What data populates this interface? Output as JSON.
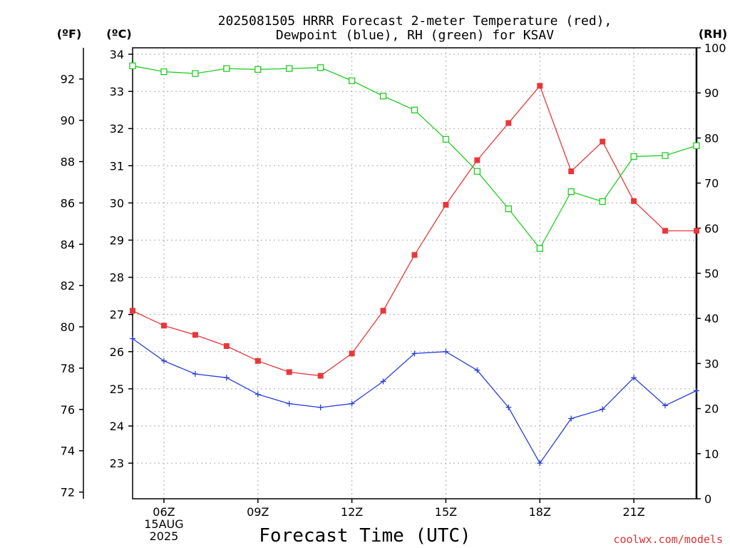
{
  "chart_data": {
    "type": "line",
    "title_lines": [
      "2025081505 HRRR Forecast 2-meter Temperature (red),",
      "Dewpoint (blue), RH (green) for KSAV"
    ],
    "xlabel": "Forecast Time (UTC)",
    "credit": "coolwx.com/models",
    "units": {
      "fahrenheit": "(ºF)",
      "celsius": "(ºC)",
      "rh": "(RH)"
    },
    "x_hours": [
      5,
      6,
      7,
      8,
      9,
      10,
      11,
      12,
      13,
      14,
      15,
      16,
      17,
      18,
      19,
      20,
      21,
      22,
      23
    ],
    "xlim": [
      5,
      23
    ],
    "x_ticks": [
      {
        "hour": 6,
        "lines": [
          "06Z",
          "15AUG",
          "2025"
        ]
      },
      {
        "hour": 9,
        "lines": [
          "09Z"
        ]
      },
      {
        "hour": 12,
        "lines": [
          "12Z"
        ]
      },
      {
        "hour": 15,
        "lines": [
          "15Z"
        ]
      },
      {
        "hour": 18,
        "lines": [
          "18Z"
        ]
      },
      {
        "hour": 21,
        "lines": [
          "21Z"
        ]
      }
    ],
    "celsius_axis": {
      "lim": [
        22,
        34.2
      ],
      "ticks": [
        23,
        24,
        25,
        26,
        27,
        28,
        29,
        30,
        31,
        32,
        33,
        34
      ]
    },
    "fahrenheit_axis": {
      "ticks": [
        72,
        74,
        76,
        78,
        80,
        82,
        84,
        86,
        88,
        90,
        92
      ]
    },
    "rh_axis": {
      "lim": [
        0,
        100
      ],
      "ticks": [
        0,
        10,
        20,
        30,
        40,
        50,
        60,
        70,
        80,
        90,
        100
      ]
    },
    "grid": true,
    "series": [
      {
        "key": "temperature",
        "axis": "celsius",
        "color": "#e8373a",
        "marker": "filled-square",
        "values": [
          27.1,
          26.7,
          26.45,
          26.15,
          25.75,
          25.45,
          25.35,
          25.95,
          27.1,
          28.6,
          29.95,
          31.15,
          32.15,
          33.15,
          30.85,
          31.65,
          30.05,
          29.25,
          29.25
        ]
      },
      {
        "key": "dewpoint",
        "axis": "celsius",
        "color": "#2a3fd8",
        "marker": "plus",
        "values": [
          26.35,
          25.75,
          25.4,
          25.3,
          24.85,
          24.6,
          24.5,
          24.6,
          25.2,
          25.95,
          26.0,
          25.5,
          24.5,
          23.0,
          24.2,
          24.45,
          25.3,
          24.55,
          24.95
        ]
      },
      {
        "key": "relative_humidity",
        "axis": "rh",
        "color": "#22cc22",
        "marker": "open-square",
        "values": [
          96,
          94.7,
          94.3,
          95.4,
          95.2,
          95.4,
          95.6,
          92.7,
          89.3,
          86.2,
          79.7,
          72.6,
          64.3,
          55.5,
          68.1,
          65.9,
          75.9,
          76.1,
          78.3
        ]
      }
    ]
  }
}
